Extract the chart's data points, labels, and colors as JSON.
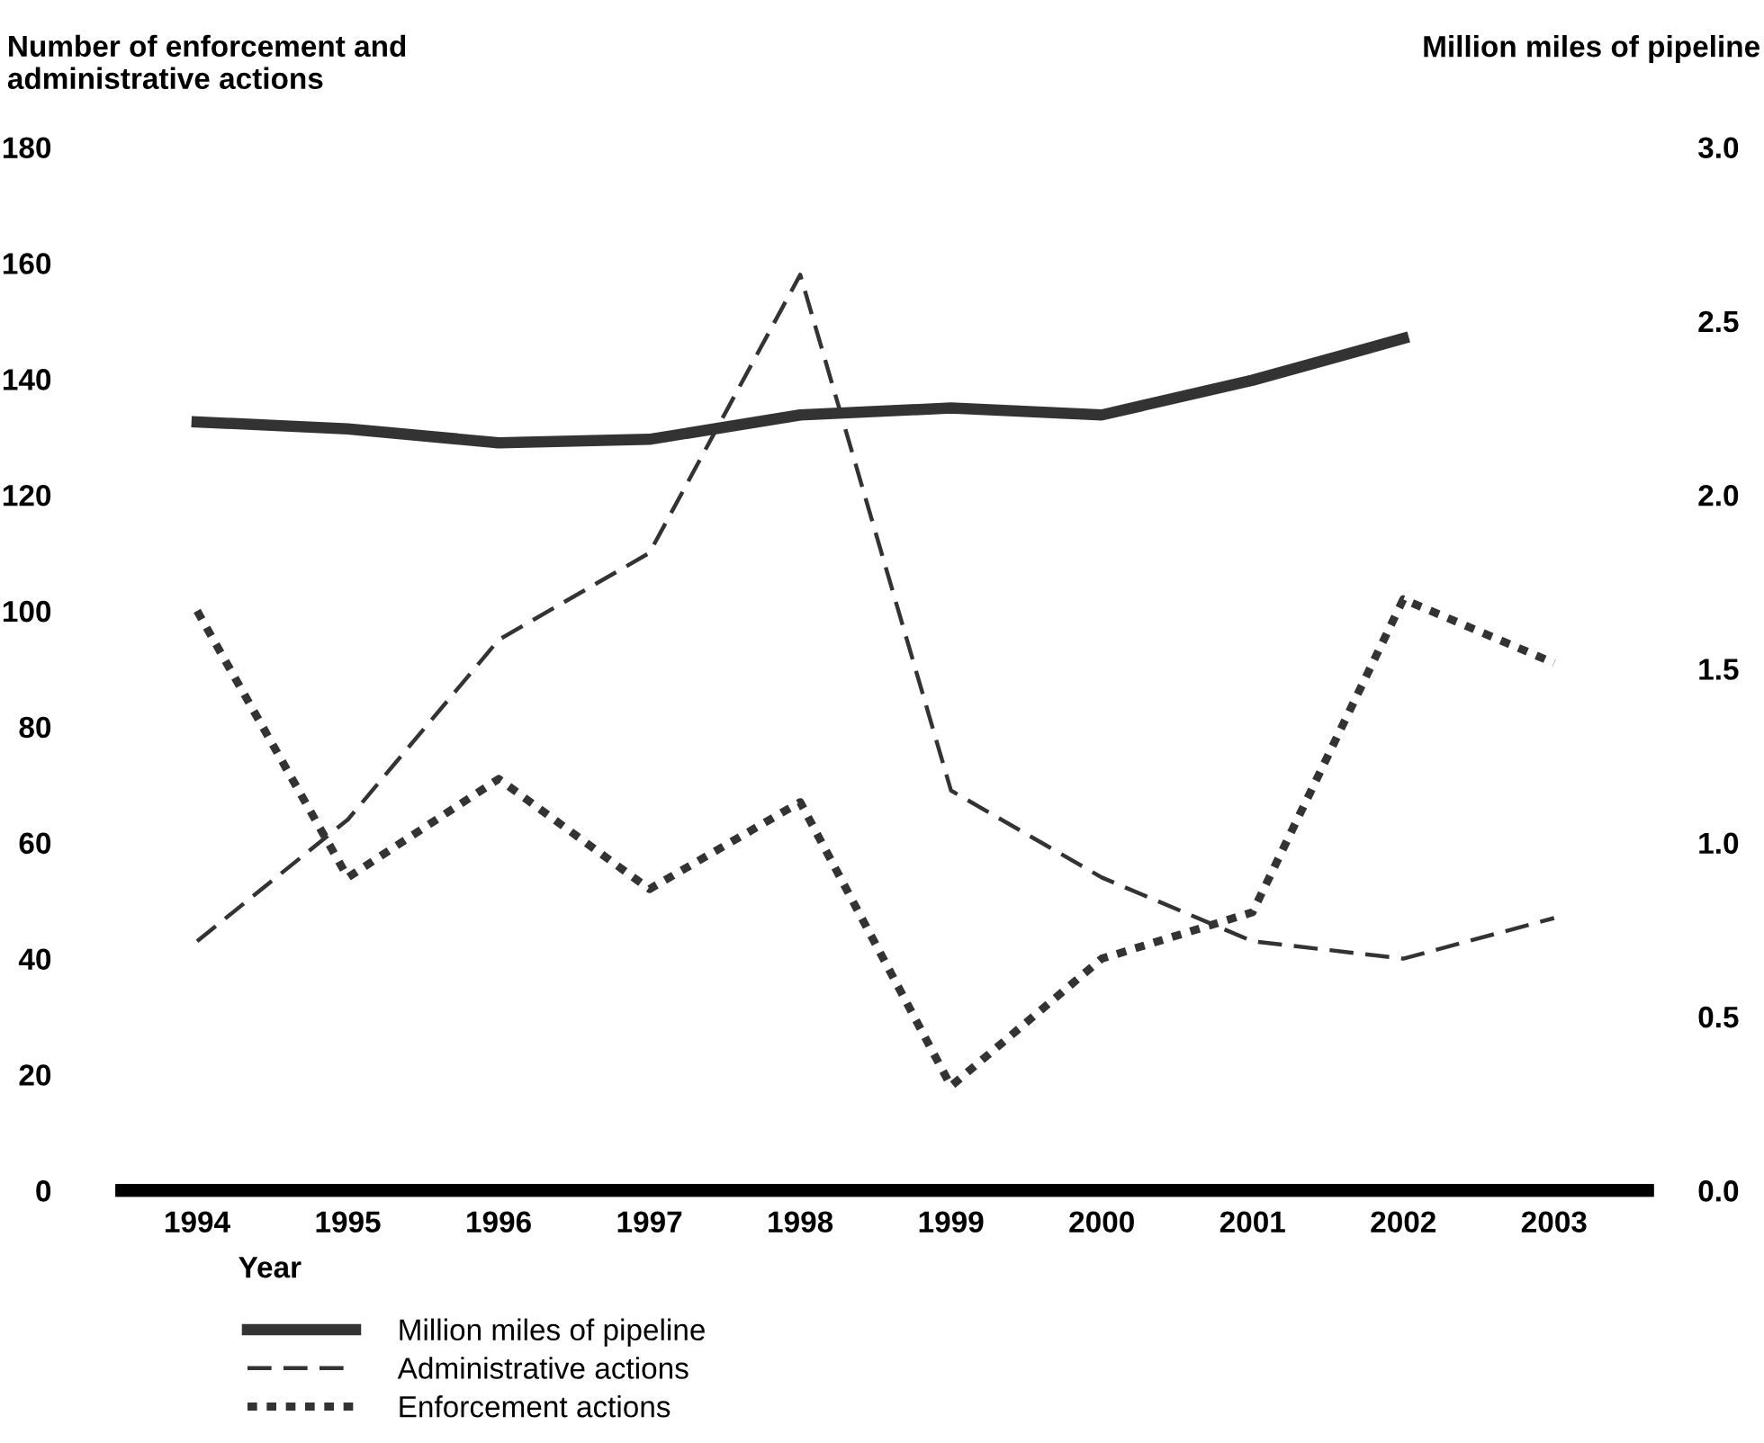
{
  "chart_data": {
    "type": "line",
    "ylabel": "Number of enforcement and\nadministrative actions",
    "y2label": "Million miles of pipeline",
    "xlabel": "Year",
    "categories": [
      "1994",
      "1995",
      "1996",
      "1997",
      "1998",
      "1999",
      "2000",
      "2001",
      "2002",
      "2003"
    ],
    "series": [
      {
        "name": "Million miles of pipeline",
        "color": "#333333",
        "axis": "y2",
        "line_style": "solid",
        "values": [
          2.21,
          2.19,
          2.15,
          2.16,
          2.23,
          2.25,
          2.23,
          2.33,
          2.45,
          null
        ]
      },
      {
        "name": "Administrative actions",
        "color": "#333333",
        "line_style": "dashed",
        "values": [
          43,
          64,
          95,
          110,
          158,
          69,
          54,
          43,
          40,
          47
        ]
      },
      {
        "name": "Enforcement actions",
        "color": "#333333",
        "line_style": "dotted",
        "values": [
          100,
          54,
          71,
          52,
          67,
          18,
          40,
          48,
          102,
          91
        ]
      }
    ],
    "ylim": [
      0,
      180
    ],
    "yticks": [
      0,
      20,
      40,
      60,
      80,
      100,
      120,
      140,
      160,
      180
    ],
    "y2lim": [
      0,
      3
    ],
    "y2ticks": [
      {
        "value": 0,
        "label": "0.0"
      },
      {
        "value": 0.5,
        "label": "0.5"
      },
      {
        "value": 1,
        "label": "1.0"
      },
      {
        "value": 1.5,
        "label": "1.5"
      },
      {
        "value": 2,
        "label": "2.0"
      },
      {
        "value": 2.5,
        "label": "2.5"
      },
      {
        "value": 3,
        "label": "3.0"
      }
    ],
    "grid": false,
    "legend": "bottom left"
  }
}
